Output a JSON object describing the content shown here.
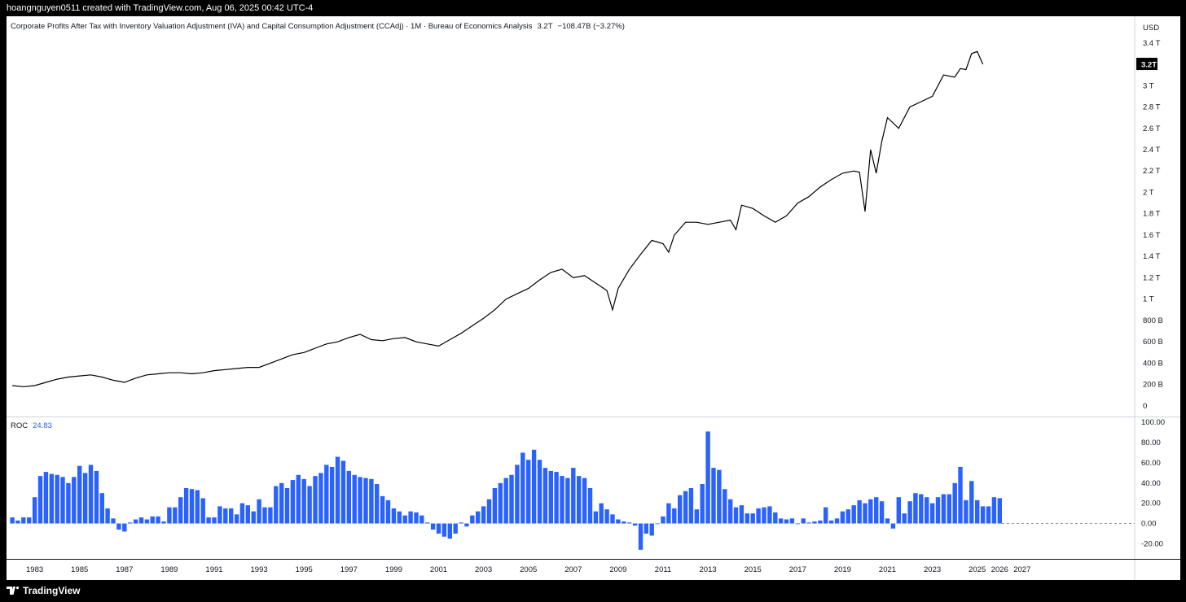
{
  "header": {
    "attribution": "hoangnguyen0511 created with TradingView.com, Aug 06, 2025 00:42 UTC-4"
  },
  "legend": {
    "symbol": "Corporate Profits After Tax with Inventory Valuation Adjustment (IVA) and Capital Consumption Adjustment (CCAdj) · 1M · Bureau of Economics Analysis",
    "last": "3.2T",
    "change": "−108.47B (−3.27%)"
  },
  "roc_panel": {
    "label": "ROC",
    "value": "24.83"
  },
  "footer": {
    "brand": "TradingView"
  },
  "colors": {
    "line": "#000000",
    "bar": "#2962ff",
    "background": "#ffffff",
    "frame": "#000000"
  },
  "chart_data": [
    {
      "type": "line",
      "title": "Corporate Profits After Tax with Inventory Valuation Adjustment (IVA) and Capital Consumption Adjustment (CCAdj)",
      "unit": "USD",
      "ylim": [
        -0.1,
        3.65
      ],
      "y_ticks": [
        0,
        0.2,
        0.4,
        0.6,
        0.8,
        1,
        1.2,
        1.4,
        1.6,
        1.8,
        2,
        2.2,
        2.4,
        2.6,
        2.8,
        3,
        3.2,
        3.4
      ],
      "y_tick_labels": [
        "0",
        "200 B",
        "400 B",
        "600 B",
        "800 B",
        "1 T",
        "1.2 T",
        "1.4 T",
        "1.6 T",
        "1.8 T",
        "2 T",
        "2.2 T",
        "2.4 T",
        "2.6 T",
        "2.8 T",
        "3 T",
        "3.2T",
        "3.4 T"
      ],
      "last_label": "3.2T",
      "x": [
        1982.0,
        1982.5,
        1983.0,
        1983.5,
        1984.0,
        1984.5,
        1985.0,
        1985.5,
        1986.0,
        1986.5,
        1987.0,
        1987.5,
        1988.0,
        1988.5,
        1989.0,
        1989.5,
        1990.0,
        1990.5,
        1991.0,
        1991.5,
        1992.0,
        1992.5,
        1993.0,
        1993.5,
        1994.0,
        1994.5,
        1995.0,
        1995.5,
        1996.0,
        1996.5,
        1997.0,
        1997.5,
        1998.0,
        1998.5,
        1999.0,
        1999.5,
        2000.0,
        2000.5,
        2001.0,
        2001.5,
        2002.0,
        2002.5,
        2003.0,
        2003.5,
        2004.0,
        2004.5,
        2005.0,
        2005.5,
        2006.0,
        2006.5,
        2007.0,
        2007.5,
        2008.0,
        2008.5,
        2008.75,
        2009.0,
        2009.5,
        2010.0,
        2010.5,
        2011.0,
        2011.25,
        2011.5,
        2012.0,
        2012.5,
        2013.0,
        2013.5,
        2014.0,
        2014.25,
        2014.5,
        2015.0,
        2015.5,
        2016.0,
        2016.5,
        2017.0,
        2017.5,
        2018.0,
        2018.5,
        2019.0,
        2019.5,
        2019.75,
        2020.0,
        2020.25,
        2020.5,
        2020.75,
        2021.0,
        2021.5,
        2022.0,
        2022.5,
        2023.0,
        2023.5,
        2024.0,
        2024.25,
        2024.5,
        2024.75,
        2025.0,
        2025.25
      ],
      "y": [
        0.19,
        0.18,
        0.19,
        0.22,
        0.25,
        0.27,
        0.28,
        0.29,
        0.27,
        0.24,
        0.22,
        0.26,
        0.29,
        0.3,
        0.31,
        0.31,
        0.3,
        0.31,
        0.33,
        0.34,
        0.35,
        0.36,
        0.36,
        0.4,
        0.44,
        0.48,
        0.5,
        0.54,
        0.58,
        0.6,
        0.64,
        0.67,
        0.62,
        0.61,
        0.63,
        0.64,
        0.6,
        0.58,
        0.56,
        0.62,
        0.68,
        0.75,
        0.82,
        0.9,
        1.0,
        1.05,
        1.1,
        1.18,
        1.25,
        1.28,
        1.2,
        1.22,
        1.15,
        1.08,
        0.9,
        1.1,
        1.28,
        1.42,
        1.55,
        1.52,
        1.44,
        1.6,
        1.72,
        1.72,
        1.7,
        1.72,
        1.74,
        1.65,
        1.88,
        1.85,
        1.78,
        1.72,
        1.78,
        1.9,
        1.96,
        2.05,
        2.12,
        2.18,
        2.2,
        2.19,
        1.82,
        2.4,
        2.18,
        2.48,
        2.7,
        2.6,
        2.8,
        2.85,
        2.9,
        3.1,
        3.08,
        3.16,
        3.15,
        3.3,
        3.32,
        3.2
      ]
    },
    {
      "type": "bar",
      "title": "ROC",
      "ylim": [
        -35,
        105
      ],
      "y_ticks": [
        -20,
        0,
        20,
        40,
        60,
        80,
        100
      ],
      "y_tick_labels": [
        "-20.00",
        "0.00",
        "20.00",
        "40.00",
        "60.00",
        "80.00",
        "100.00"
      ],
      "x_ticks": [
        1983,
        1985,
        1987,
        1989,
        1991,
        1993,
        1995,
        1997,
        1999,
        2001,
        2003,
        2005,
        2007,
        2009,
        2011,
        2013,
        2015,
        2017,
        2019,
        2021,
        2023,
        2025,
        2026,
        2027
      ],
      "x_tick_labels": [
        "1983",
        "1985",
        "1987",
        "1989",
        "1991",
        "1993",
        "1995",
        "1997",
        "1999",
        "2001",
        "2003",
        "2005",
        "2007",
        "2009",
        "2011",
        "2013",
        "2015",
        "2017",
        "2019",
        "2021",
        "2023",
        "2025",
        "2026",
        "2027"
      ],
      "x_start": 1982.0,
      "x_step": 0.25,
      "values": [
        6,
        3,
        6,
        6,
        26,
        47,
        51,
        49,
        48,
        46,
        40,
        46,
        57,
        50,
        58,
        52,
        30,
        15,
        5,
        -6,
        -8,
        1,
        4,
        6,
        4,
        7,
        7,
        2,
        16,
        16,
        26,
        35,
        34,
        33,
        25,
        6,
        6,
        17,
        15,
        15,
        9,
        20,
        18,
        12,
        24,
        16,
        16,
        37,
        40,
        35,
        43,
        48,
        44,
        37,
        47,
        50,
        58,
        56,
        66,
        62,
        52,
        48,
        46,
        45,
        44,
        39,
        27,
        23,
        15,
        12,
        8,
        12,
        11,
        8,
        1,
        -6,
        -10,
        -13,
        -15,
        -10,
        1,
        -3,
        8,
        12,
        17,
        24,
        35,
        40,
        45,
        48,
        58,
        70,
        63,
        73,
        63,
        55,
        52,
        51,
        47,
        45,
        55,
        47,
        45,
        35,
        12,
        20,
        14,
        9,
        4,
        2,
        1,
        -2,
        -26,
        -10,
        -12,
        0,
        7,
        20,
        15,
        28,
        32,
        35,
        14,
        39,
        91,
        55,
        53,
        34,
        24,
        16,
        18,
        10,
        10,
        15,
        16,
        17,
        11,
        5,
        4,
        5,
        0,
        5,
        1,
        2,
        3,
        16,
        3,
        5,
        12,
        14,
        18,
        23,
        20,
        24,
        26,
        22,
        5,
        -5,
        26,
        10,
        22,
        30,
        29,
        26,
        20,
        26,
        29,
        29,
        40,
        56,
        23,
        42,
        23,
        17,
        17,
        26,
        25
      ]
    }
  ]
}
